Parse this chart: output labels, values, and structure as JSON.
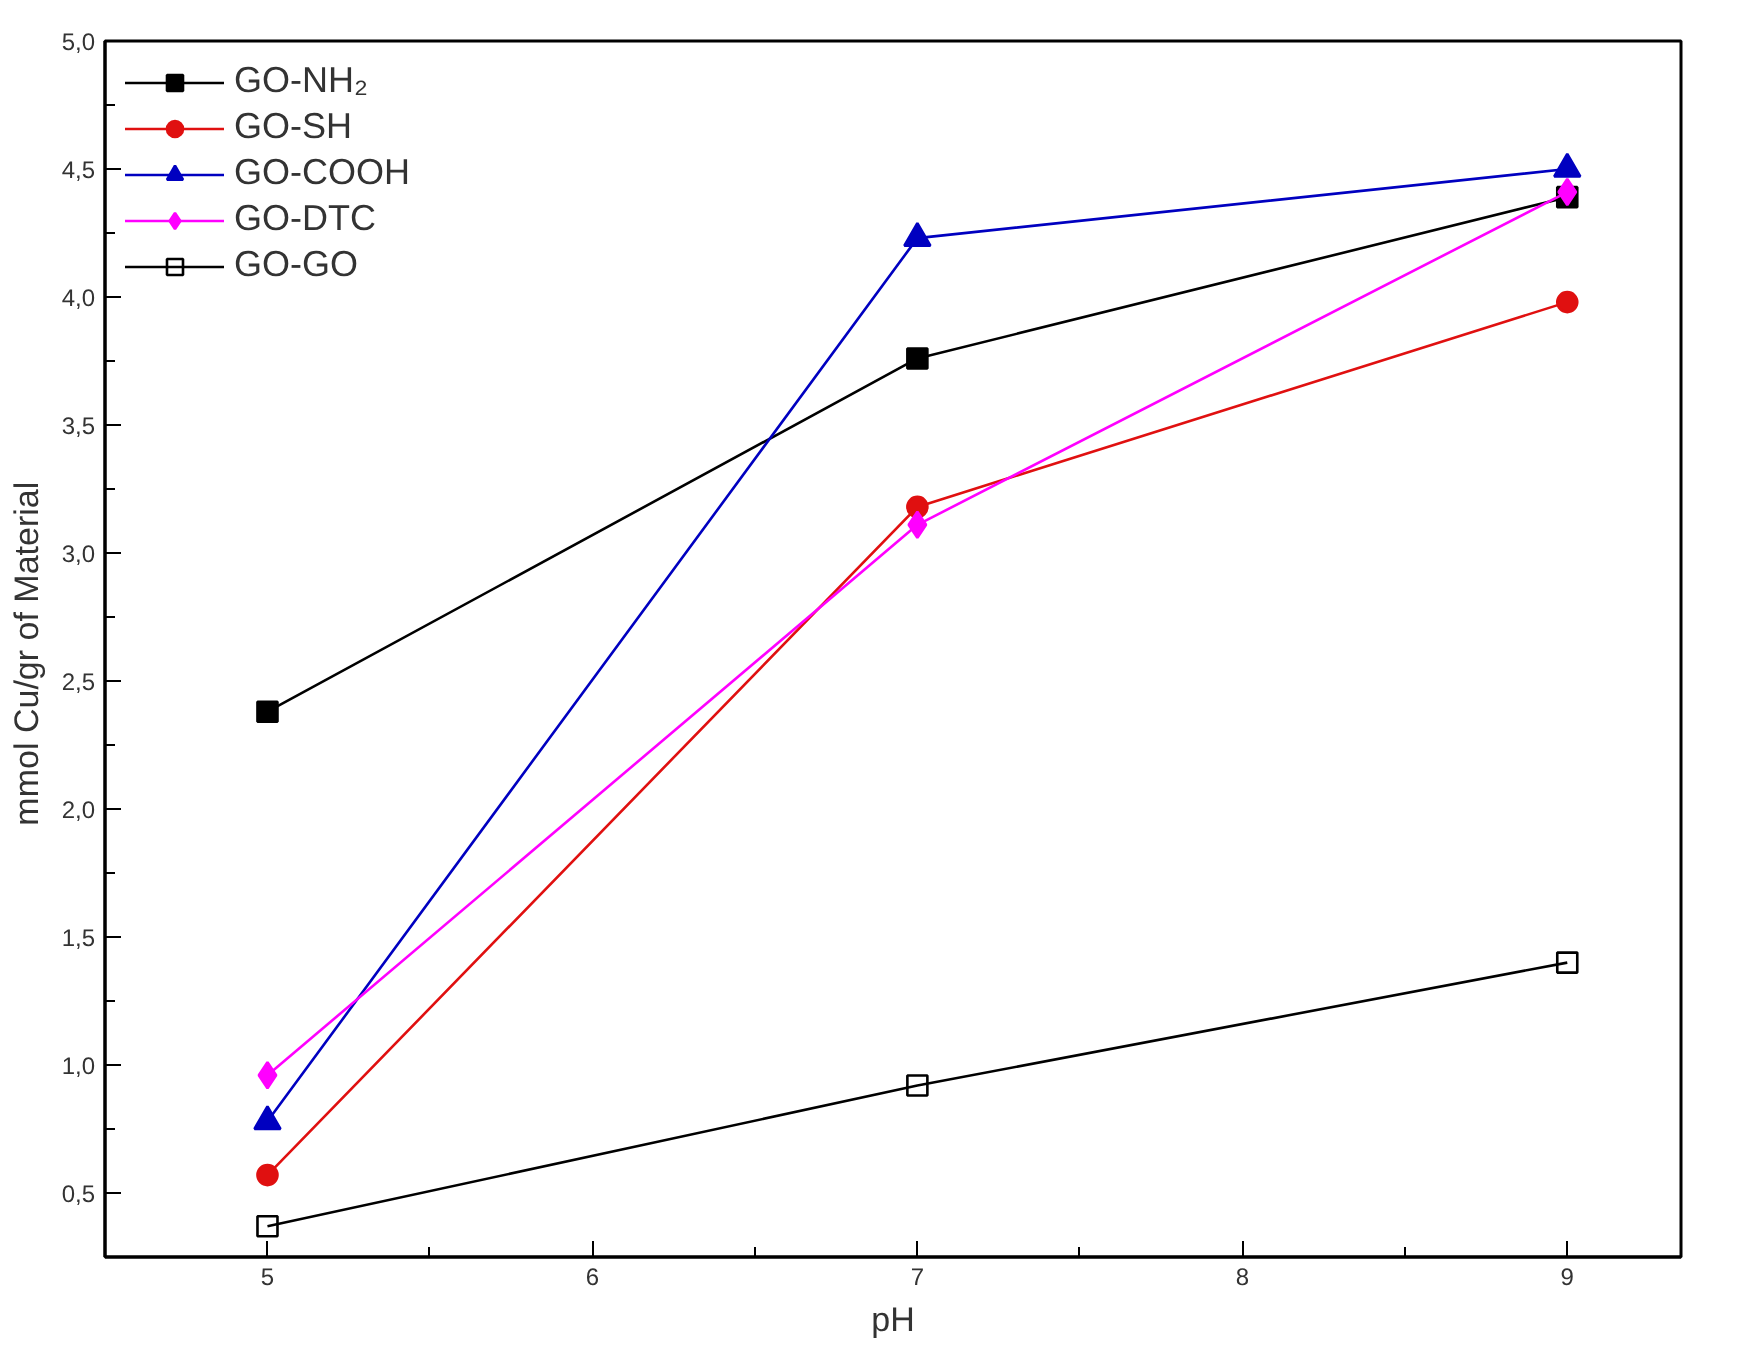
{
  "chart_data": {
    "type": "line",
    "xlabel": "pH",
    "ylabel": "mmol Cu/gr  of Material",
    "x": [
      5,
      7,
      9
    ],
    "series": [
      {
        "name": "GO-NH₂",
        "color": "#000000",
        "marker": "square",
        "values": [
          2.38,
          3.76,
          4.39
        ]
      },
      {
        "name": "GO-SH",
        "color": "#e01010",
        "marker": "circle",
        "values": [
          0.57,
          3.18,
          3.98
        ]
      },
      {
        "name": "GO-COOH",
        "color": "#0000c0",
        "marker": "triangle",
        "values": [
          0.78,
          4.23,
          4.5
        ]
      },
      {
        "name": "GO-DTC",
        "color": "#ff00ff",
        "marker": "diamond",
        "values": [
          0.96,
          3.11,
          4.41
        ]
      },
      {
        "name": "GO-GO",
        "color": "#000000",
        "marker": "square",
        "values": [
          0.37,
          0.92,
          1.4
        ]
      }
    ],
    "xlim": [
      4.5,
      9.35
    ],
    "ylim": [
      0.25,
      5.0
    ],
    "xticks": [
      5,
      6,
      7,
      8,
      9
    ],
    "yticks": [
      {
        "value": 0.5,
        "label": "0,5"
      },
      {
        "value": 1.0,
        "label": "1,0"
      },
      {
        "value": 1.5,
        "label": "1,5"
      },
      {
        "value": 2.0,
        "label": "2,0"
      },
      {
        "value": 2.5,
        "label": "2,5"
      },
      {
        "value": 3.0,
        "label": "3,0"
      },
      {
        "value": 3.5,
        "label": "3,5"
      },
      {
        "value": 4.0,
        "label": "4,0"
      },
      {
        "value": 4.5,
        "label": "4,5"
      },
      {
        "value": 5.0,
        "label": "5,0"
      }
    ],
    "legend": "top left",
    "grid": false,
    "line_style": "solid"
  }
}
